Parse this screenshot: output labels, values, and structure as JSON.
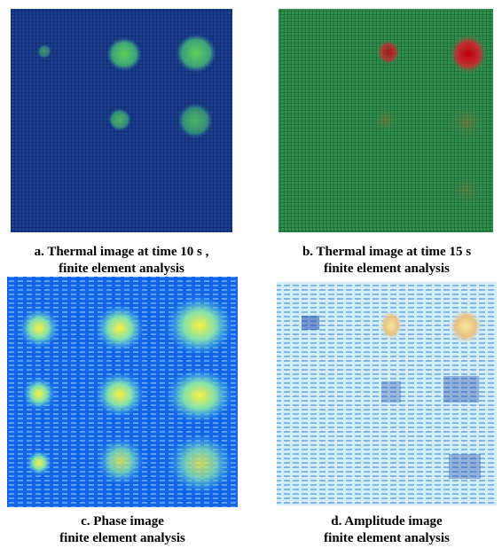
{
  "panels": [
    {
      "caption": [
        "a. Thermal image at time 10 s ,",
        "finite element analysis"
      ]
    },
    {
      "caption": [
        "b. Thermal image at time 15 s",
        "finite element analysis"
      ]
    },
    {
      "caption": [
        "c. Phase image",
        "finite element analysis"
      ]
    },
    {
      "caption": [
        "d. Amplitude image",
        "finite element analysis"
      ]
    }
  ]
}
